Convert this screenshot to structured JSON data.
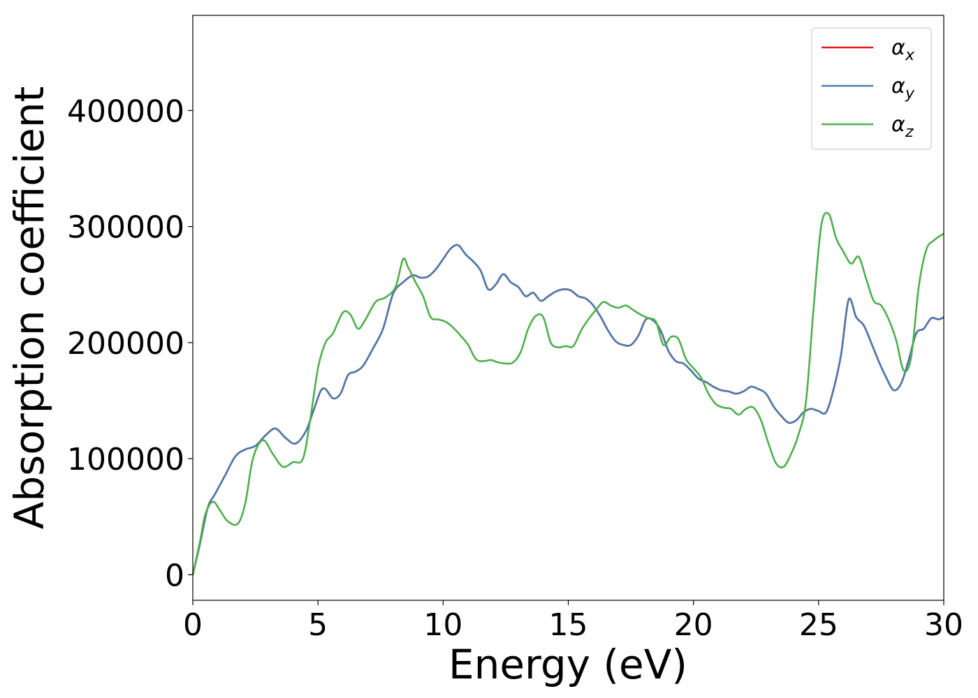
{
  "chart_data": {
    "type": "line",
    "title": "",
    "xlabel": "Energy (eV)",
    "ylabel": "Absorption coefficient",
    "xlim": [
      0,
      30
    ],
    "ylim": [
      -22000,
      482000
    ],
    "x_ticks": [
      0,
      5,
      10,
      15,
      20,
      25,
      30
    ],
    "y_ticks": [
      0,
      100000,
      200000,
      300000,
      400000
    ],
    "grid": false,
    "legend_position": "top-right",
    "series": [
      {
        "name": "α",
        "subscript": "x",
        "color": "#e41a1c",
        "x": [
          0,
          0.3,
          0.6,
          0.9,
          1.3,
          1.7,
          2.1,
          2.5,
          2.9,
          3.3,
          3.7,
          4.1,
          4.5,
          4.8,
          5.1,
          5.3,
          5.6,
          5.9,
          6.2,
          6.5,
          6.8,
          7.2,
          7.6,
          8.0,
          8.4,
          8.8,
          9.1,
          9.4,
          9.7,
          10.0,
          10.3,
          10.6,
          10.9,
          11.2,
          11.5,
          11.8,
          12.1,
          12.4,
          12.7,
          13.0,
          13.3,
          13.6,
          13.9,
          14.2,
          14.5,
          14.8,
          15.1,
          15.4,
          15.7,
          16.0,
          16.3,
          16.6,
          16.9,
          17.2,
          17.5,
          17.8,
          18.1,
          18.4,
          18.7,
          19.0,
          19.3,
          19.6,
          19.9,
          20.2,
          20.5,
          20.8,
          21.1,
          21.4,
          21.7,
          22.0,
          22.3,
          22.6,
          22.9,
          23.2,
          23.5,
          23.8,
          24.1,
          24.4,
          24.7,
          25.0,
          25.3,
          25.6,
          25.9,
          26.2,
          26.5,
          26.8,
          27.1,
          27.4,
          27.7,
          28.0,
          28.3,
          28.6,
          28.9,
          29.2,
          29.5,
          29.8,
          30.0
        ],
        "values": [
          0,
          28000,
          58000,
          70000,
          86000,
          102000,
          108000,
          111000,
          120000,
          126000,
          118000,
          113000,
          123000,
          140000,
          158000,
          160000,
          152000,
          156000,
          172000,
          175000,
          180000,
          195000,
          212000,
          242000,
          252000,
          258000,
          256000,
          257000,
          263000,
          272000,
          281000,
          284000,
          276000,
          270000,
          262000,
          246000,
          250000,
          259000,
          252000,
          248000,
          240000,
          243000,
          236000,
          240000,
          244000,
          246000,
          245000,
          240000,
          238000,
          232000,
          222000,
          210000,
          201000,
          198000,
          198000,
          206000,
          220000,
          219000,
          210000,
          193000,
          184000,
          182000,
          176000,
          169000,
          166000,
          162000,
          159000,
          158000,
          156000,
          158000,
          162000,
          160000,
          156000,
          145000,
          137000,
          131000,
          133000,
          140000,
          143000,
          141000,
          140000,
          160000,
          190000,
          237000,
          222000,
          215000,
          200000,
          184000,
          170000,
          159000,
          165000,
          185000,
          208000,
          212000,
          221000,
          220000,
          222000
        ]
      },
      {
        "name": "α",
        "subscript": "y",
        "color": "#4a79ad",
        "x": [
          0,
          0.3,
          0.6,
          0.9,
          1.3,
          1.7,
          2.1,
          2.5,
          2.9,
          3.3,
          3.7,
          4.1,
          4.5,
          4.8,
          5.1,
          5.3,
          5.6,
          5.9,
          6.2,
          6.5,
          6.8,
          7.2,
          7.6,
          8.0,
          8.4,
          8.8,
          9.1,
          9.4,
          9.7,
          10.0,
          10.3,
          10.6,
          10.9,
          11.2,
          11.5,
          11.8,
          12.1,
          12.4,
          12.7,
          13.0,
          13.3,
          13.6,
          13.9,
          14.2,
          14.5,
          14.8,
          15.1,
          15.4,
          15.7,
          16.0,
          16.3,
          16.6,
          16.9,
          17.2,
          17.5,
          17.8,
          18.1,
          18.4,
          18.7,
          19.0,
          19.3,
          19.6,
          19.9,
          20.2,
          20.5,
          20.8,
          21.1,
          21.4,
          21.7,
          22.0,
          22.3,
          22.6,
          22.9,
          23.2,
          23.5,
          23.8,
          24.1,
          24.4,
          24.7,
          25.0,
          25.3,
          25.6,
          25.9,
          26.2,
          26.5,
          26.8,
          27.1,
          27.4,
          27.7,
          28.0,
          28.3,
          28.6,
          28.9,
          29.2,
          29.5,
          29.8,
          30.0
        ],
        "values": [
          0,
          28000,
          58000,
          70000,
          86000,
          102000,
          108000,
          111000,
          120000,
          126000,
          118000,
          113000,
          123000,
          140000,
          158000,
          160000,
          152000,
          156000,
          172000,
          175000,
          180000,
          195000,
          212000,
          242000,
          252000,
          258000,
          256000,
          257000,
          263000,
          272000,
          281000,
          284000,
          276000,
          270000,
          262000,
          246000,
          250000,
          259000,
          252000,
          248000,
          240000,
          243000,
          236000,
          240000,
          244000,
          246000,
          245000,
          240000,
          238000,
          232000,
          222000,
          210000,
          201000,
          198000,
          198000,
          206000,
          220000,
          219000,
          210000,
          193000,
          184000,
          182000,
          176000,
          169000,
          166000,
          162000,
          159000,
          158000,
          156000,
          158000,
          162000,
          160000,
          156000,
          145000,
          137000,
          131000,
          133000,
          140000,
          143000,
          141000,
          140000,
          160000,
          190000,
          237000,
          222000,
          215000,
          200000,
          184000,
          170000,
          159000,
          165000,
          185000,
          208000,
          212000,
          221000,
          220000,
          222000
        ]
      },
      {
        "name": "α",
        "subscript": "z",
        "color": "#4daf4a",
        "x": [
          0,
          0.3,
          0.5,
          0.8,
          1.1,
          1.4,
          1.8,
          2.1,
          2.4,
          2.8,
          3.2,
          3.6,
          4.0,
          4.4,
          4.7,
          5.0,
          5.3,
          5.6,
          6.0,
          6.3,
          6.6,
          6.9,
          7.3,
          7.7,
          8.1,
          8.4,
          8.6,
          8.9,
          9.2,
          9.5,
          9.8,
          10.1,
          10.4,
          10.7,
          11.0,
          11.3,
          11.6,
          11.9,
          12.2,
          12.5,
          12.8,
          13.1,
          13.4,
          13.7,
          14.0,
          14.3,
          14.6,
          14.9,
          15.2,
          15.5,
          15.8,
          16.1,
          16.4,
          16.7,
          17.0,
          17.3,
          17.6,
          17.9,
          18.2,
          18.5,
          18.8,
          19.1,
          19.4,
          19.7,
          20.0,
          20.3,
          20.6,
          20.9,
          21.2,
          21.5,
          21.8,
          22.1,
          22.4,
          22.7,
          23.0,
          23.3,
          23.6,
          23.9,
          24.2,
          24.5,
          24.8,
          25.1,
          25.4,
          25.7,
          26.0,
          26.3,
          26.6,
          26.9,
          27.2,
          27.5,
          27.8,
          28.1,
          28.4,
          28.7,
          29.0,
          29.3,
          29.6,
          30.0
        ],
        "values": [
          0,
          30000,
          52000,
          63000,
          55000,
          46000,
          44000,
          62000,
          100000,
          116000,
          104000,
          93000,
          97000,
          100000,
          135000,
          178000,
          200000,
          208000,
          226000,
          224000,
          212000,
          220000,
          235000,
          239000,
          248000,
          272000,
          265000,
          252000,
          240000,
          222000,
          220000,
          218000,
          213000,
          206000,
          198000,
          186000,
          184000,
          185000,
          183000,
          182000,
          183000,
          192000,
          212000,
          223000,
          222000,
          200000,
          196000,
          197000,
          197000,
          210000,
          220000,
          228000,
          235000,
          232000,
          230000,
          232000,
          228000,
          224000,
          221000,
          218000,
          198000,
          205000,
          203000,
          186000,
          178000,
          170000,
          156000,
          147000,
          144000,
          143000,
          138000,
          143000,
          144000,
          133000,
          113000,
          96000,
          93000,
          104000,
          121000,
          150000,
          230000,
          300000,
          311000,
          290000,
          278000,
          268000,
          274000,
          255000,
          236000,
          232000,
          220000,
          202000,
          176000,
          188000,
          248000,
          280000,
          288000,
          294000
        ]
      }
    ]
  }
}
